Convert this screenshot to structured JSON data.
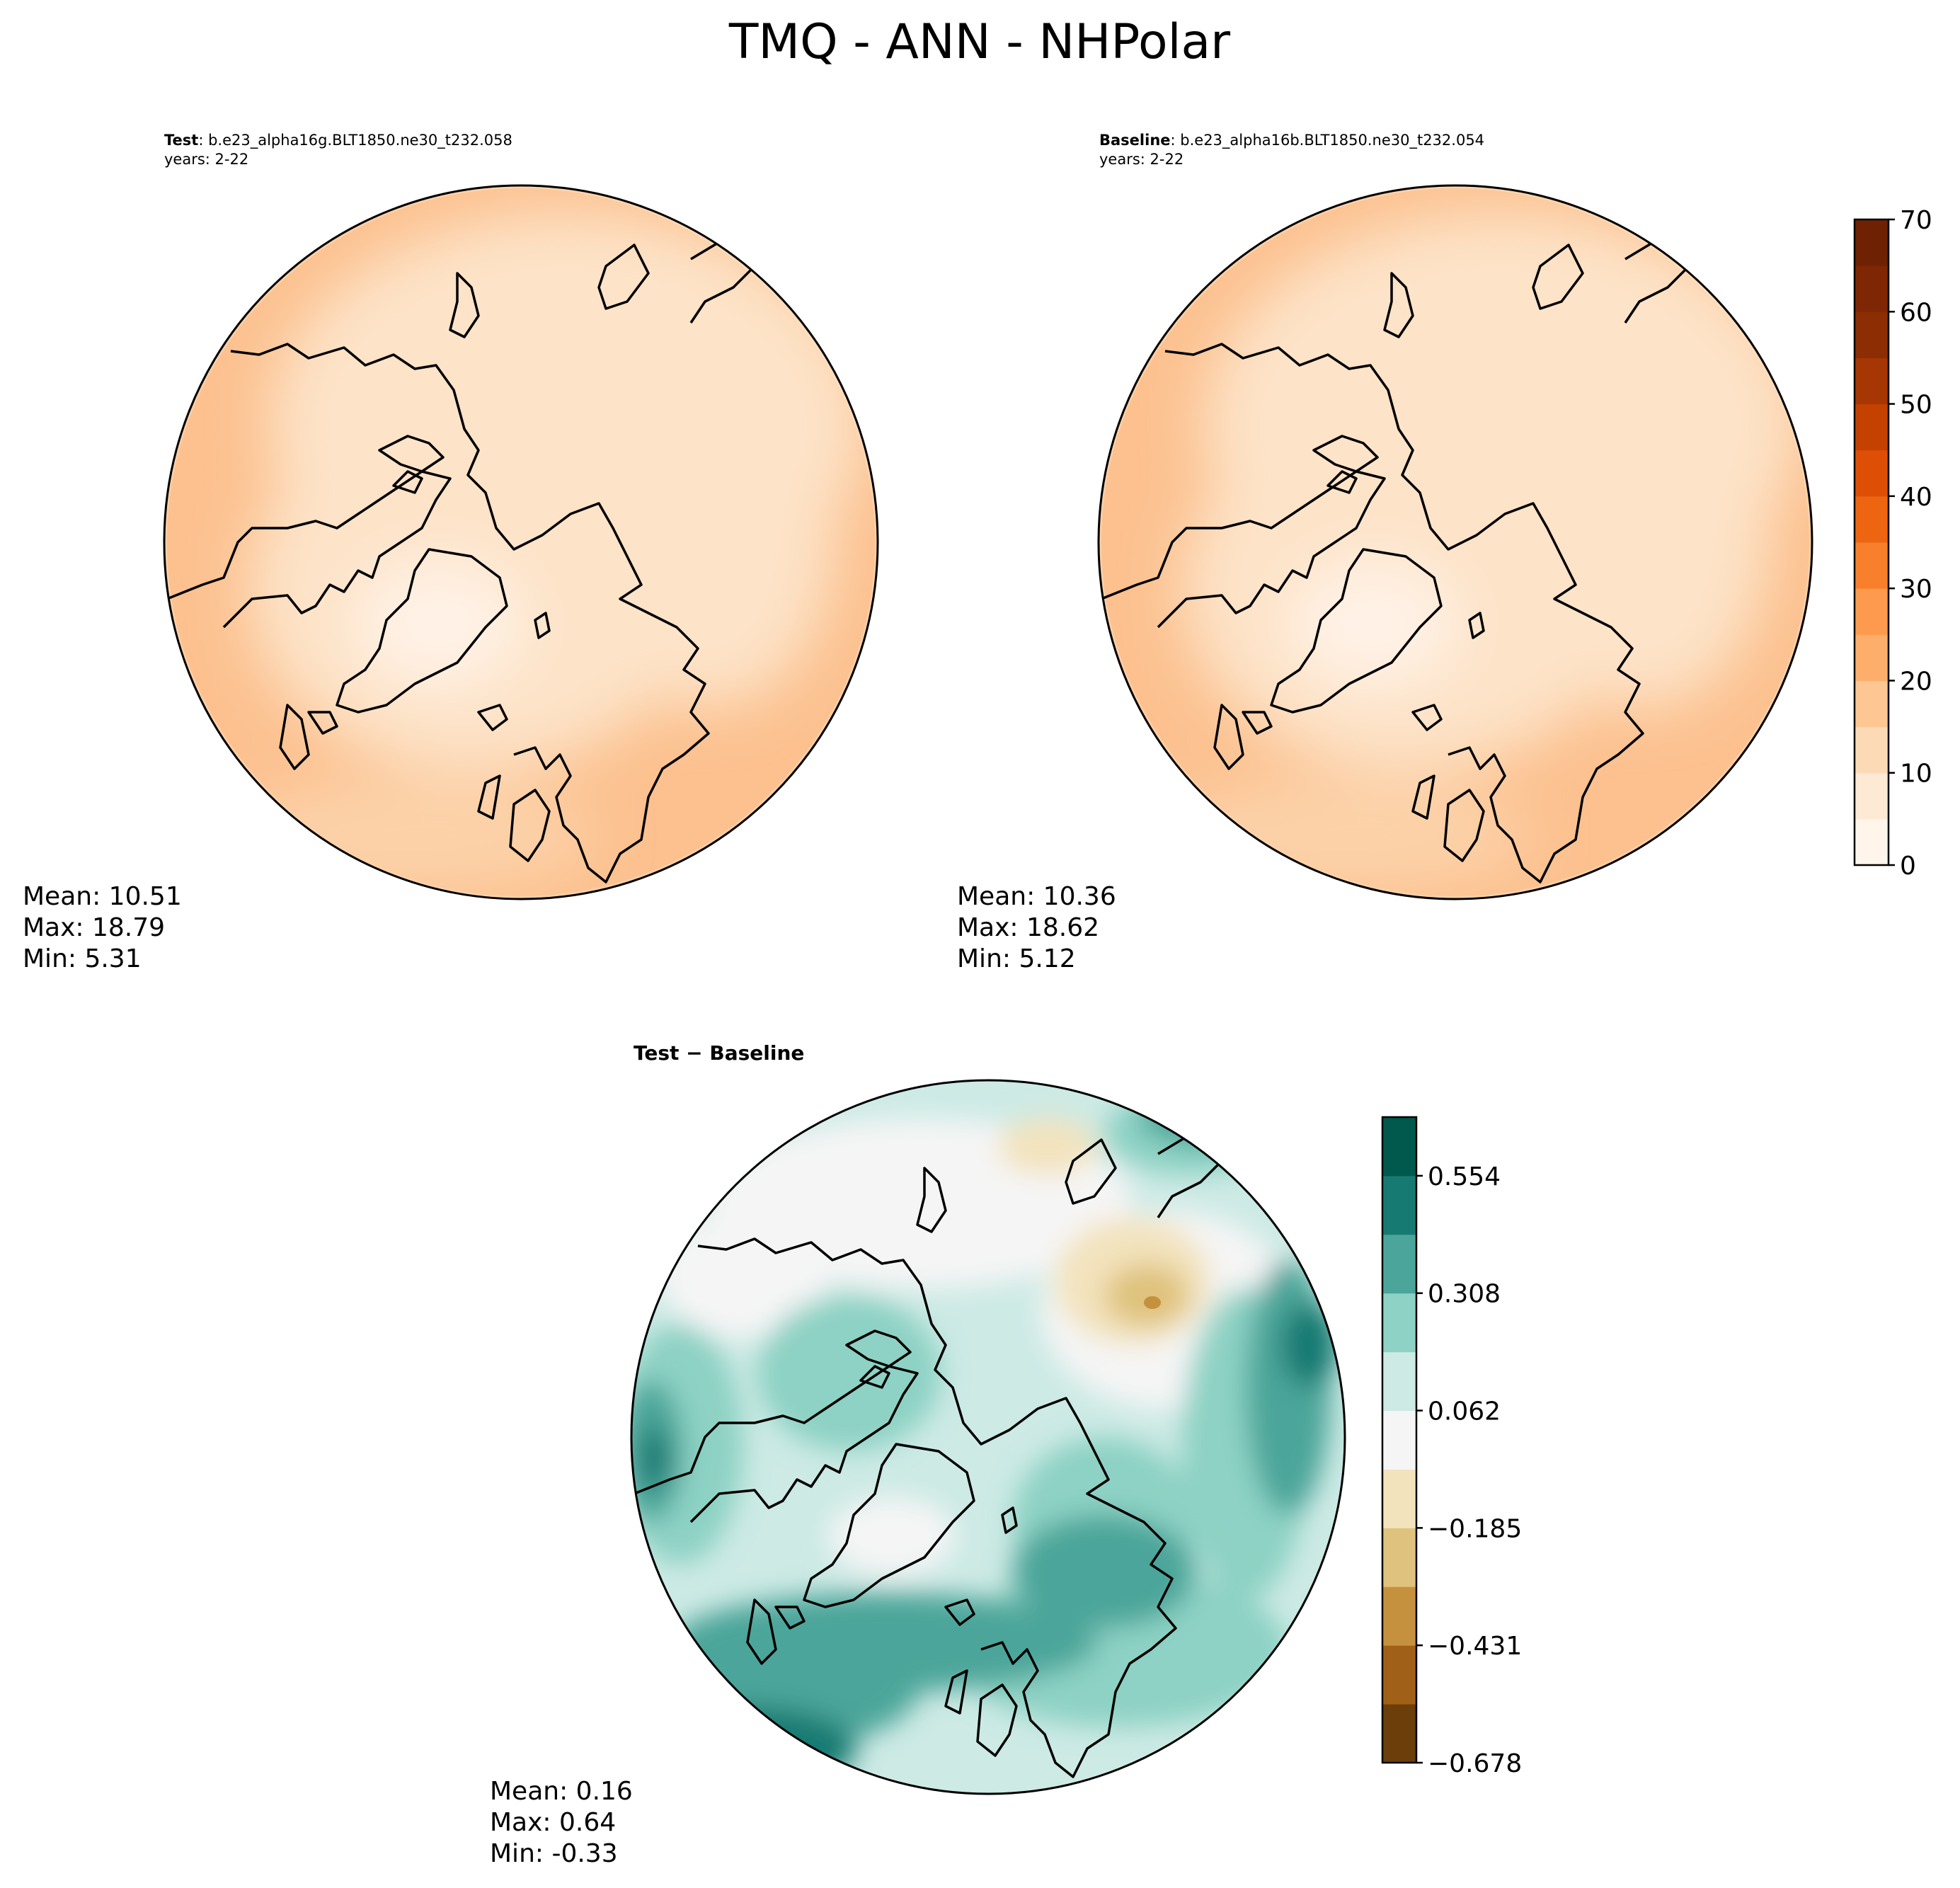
{
  "suptitle": "TMQ - ANN - NHPolar",
  "chart_data": [
    {
      "type": "heatmap",
      "projection": "north-polar-stereographic",
      "panel": "test",
      "title_bold": "Test",
      "title_rest": ": b.e23_alpha16g.BLT1850.ne30_t232.058",
      "years": "years: 2-22",
      "stats": {
        "mean": "Mean: 10.51",
        "max": "Max: 18.79",
        "min": "Min:  5.31"
      },
      "mean_value": 10.51,
      "max_value": 18.79,
      "min_value": 5.31
    },
    {
      "type": "heatmap",
      "projection": "north-polar-stereographic",
      "panel": "baseline",
      "title_bold": "Baseline",
      "title_rest": ": b.e23_alpha16b.BLT1850.ne30_t232.054",
      "years": "years: 2-22",
      "stats": {
        "mean": "Mean: 10.36",
        "max": "Max: 18.62",
        "min": "Min:  5.12"
      },
      "mean_value": 10.36,
      "max_value": 18.62,
      "min_value": 5.12
    },
    {
      "type": "heatmap",
      "projection": "north-polar-stereographic",
      "panel": "difference",
      "title_text": "Test − Baseline",
      "stats": {
        "mean": "Mean:  0.16",
        "max": "Max:  0.64",
        "min": "Min: -0.33"
      },
      "mean_value": 0.16,
      "max_value": 0.64,
      "min_value": -0.33
    }
  ],
  "colorbar_main": {
    "range": [
      0,
      70
    ],
    "ticks": [
      "0",
      "10",
      "20",
      "30",
      "40",
      "50",
      "60",
      "70"
    ],
    "levels": 14,
    "colors": [
      "#fff5eb",
      "#fee9d5",
      "#fddab6",
      "#fdc692",
      "#fdae6b",
      "#fd9a4e",
      "#f87f2c",
      "#ee6511",
      "#de4f05",
      "#c54102",
      "#a63603",
      "#8c2d04",
      "#7f2704",
      "#6e2203"
    ]
  },
  "colorbar_diff": {
    "ticks": [
      "0.554",
      "0.308",
      "0.062",
      "−0.185",
      "−0.431",
      "−0.678"
    ],
    "levels": 11,
    "colors": [
      "#6b3e0a",
      "#a06018",
      "#c6913e",
      "#dfc27d",
      "#f3e3bd",
      "#f5f5f5",
      "#cdeae5",
      "#8dd2c4",
      "#4ba59a",
      "#177a72",
      "#01584c"
    ]
  },
  "colors": {
    "map_light": "#fddcbd",
    "map_mid": "#fccfa6",
    "map_dark": "#fbbf8c",
    "diff_base": "#cdeae5",
    "diff_mid": "#8dd2c4",
    "diff_dark": "#4ba59a",
    "diff_darker": "#177a72",
    "diff_tan": "#f3e3bd",
    "diff_brown": "#dfc27d"
  }
}
